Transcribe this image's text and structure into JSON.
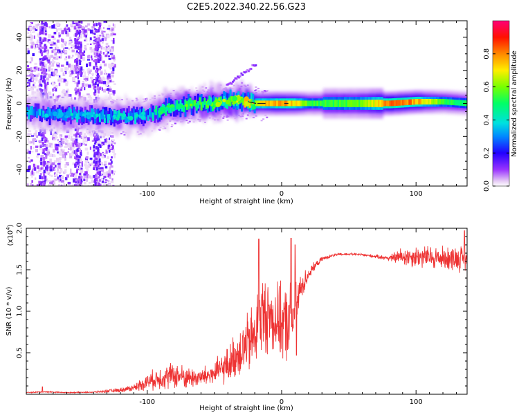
{
  "title": "C2E5.2022.340.22.56.G23",
  "chart_data": [
    {
      "type": "heatmap",
      "name": "spectrogram",
      "xlabel": "Height of straight line (km)",
      "ylabel": "Frequency (Hz)",
      "xlim": [
        -190,
        138
      ],
      "ylim": [
        -50,
        50
      ],
      "x_ticks": [
        -100,
        0,
        100
      ],
      "y_ticks": [
        -40,
        -20,
        0,
        20,
        40
      ],
      "colorbar": {
        "label": "Normalized spectral amplitude",
        "range": [
          0,
          1
        ],
        "ticks": [
          0.0,
          0.2,
          0.4,
          0.6,
          0.8
        ]
      },
      "ridge": {
        "x": [
          -190,
          -175,
          -160,
          -145,
          -130,
          -115,
          -100,
          -85,
          -70,
          -55,
          -40,
          -30,
          -20,
          -10,
          0,
          10,
          20,
          40,
          60,
          80,
          100,
          120,
          138
        ],
        "frequency": [
          -5,
          -6,
          -7,
          -7,
          -8,
          -8,
          -7,
          -3,
          -1,
          0,
          1,
          2,
          0,
          0,
          0,
          0,
          0,
          0,
          0,
          0,
          1,
          1,
          0
        ],
        "amplitude": [
          0.3,
          0.35,
          0.35,
          0.3,
          0.35,
          0.35,
          0.35,
          0.45,
          0.5,
          0.5,
          0.55,
          0.6,
          0.7,
          0.75,
          0.8,
          0.75,
          0.55,
          0.55,
          0.6,
          0.85,
          0.8,
          0.55,
          0.5
        ]
      }
    },
    {
      "type": "line",
      "name": "snr",
      "xlabel": "Height of straight line (km)",
      "ylabel": "SNR (10 * v/v)",
      "y_scale_label": "(x10",
      "y_scale_exponent": "4",
      "y_scale_close": ")",
      "xlim": [
        -190,
        138
      ],
      "ylim": [
        0,
        20000
      ],
      "x_ticks": [
        -100,
        0,
        100
      ],
      "y_ticks": [
        5000,
        10000,
        15000,
        20000
      ],
      "y_tick_labels": [
        "0.5",
        "1.0",
        "1.5",
        "2.0"
      ],
      "color": "#ee3333",
      "envelope": {
        "x": [
          -190,
          -175,
          -160,
          -140,
          -120,
          -110,
          -100,
          -90,
          -80,
          -70,
          -60,
          -50,
          -40,
          -35,
          -30,
          -25,
          -20,
          -17,
          -15,
          -10,
          -5,
          0,
          5,
          10,
          12,
          15,
          20,
          25,
          30,
          40,
          50,
          60,
          70,
          80,
          85,
          90,
          100,
          110,
          120,
          130,
          138
        ],
        "mean": [
          200,
          300,
          200,
          250,
          500,
          800,
          1500,
          2000,
          2300,
          2000,
          2000,
          2500,
          3500,
          4500,
          5500,
          6000,
          7000,
          9000,
          9500,
          9500,
          9000,
          8500,
          8500,
          10000,
          11500,
          13000,
          14500,
          15500,
          16300,
          16800,
          16900,
          16800,
          16600,
          16400,
          16500,
          16600,
          16600,
          16500,
          16400,
          16400,
          16300
        ],
        "noise": [
          50,
          80,
          50,
          60,
          250,
          400,
          900,
          1300,
          1500,
          1200,
          1100,
          1400,
          2000,
          2500,
          3200,
          3500,
          4000,
          4500,
          4500,
          4200,
          4000,
          4000,
          4500,
          3500,
          2500,
          1500,
          800,
          400,
          250,
          150,
          120,
          150,
          200,
          300,
          700,
          1100,
          1200,
          1300,
          1300,
          1400,
          1500
        ],
        "spikes": [
          {
            "x": -17,
            "value": 18700
          },
          {
            "x": 7,
            "value": 18800
          },
          {
            "x": 10,
            "value": 18000
          },
          {
            "x": 136,
            "value": 19700
          },
          {
            "x": -178,
            "value": 900
          },
          {
            "x": 11,
            "value": 4700
          }
        ]
      }
    }
  ]
}
